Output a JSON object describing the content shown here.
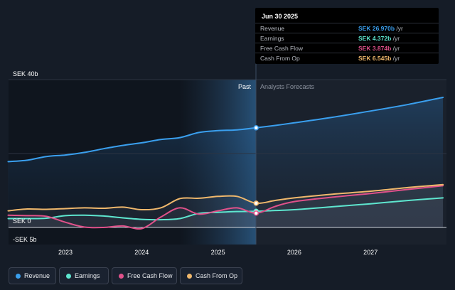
{
  "tooltip": {
    "date": "Jun 30 2025",
    "rows": [
      {
        "label": "Revenue",
        "value": "SEK 26.970b",
        "unit": " /yr",
        "color": "#3a9fee"
      },
      {
        "label": "Earnings",
        "value": "SEK 4.372b",
        "unit": " /yr",
        "color": "#5ee6cf"
      },
      {
        "label": "Free Cash Flow",
        "value": "SEK 3.874b",
        "unit": " /yr",
        "color": "#e0518a"
      },
      {
        "label": "Cash From Op",
        "value": "SEK 6.545b",
        "unit": " /yr",
        "color": "#f0b86c"
      }
    ]
  },
  "labels": {
    "past": "Past",
    "forecast": "Analysts Forecasts",
    "y_top": "SEK 40b",
    "y_zero": "SEK 0",
    "y_bottom": "-SEK 5b"
  },
  "legend": [
    {
      "label": "Revenue",
      "color": "#3a9fee"
    },
    {
      "label": "Earnings",
      "color": "#5ee6cf"
    },
    {
      "label": "Free Cash Flow",
      "color": "#e0518a"
    },
    {
      "label": "Cash From Op",
      "color": "#f0b86c"
    }
  ],
  "chart_data": {
    "type": "line",
    "ylim": [
      -5,
      40
    ],
    "y_ticks": [
      "SEK 40b",
      "SEK 0",
      "-SEK 5b"
    ],
    "x_ticks": [
      "2023",
      "2024",
      "2025",
      "2026",
      "2027"
    ],
    "past_end": 2025.5,
    "series": [
      {
        "name": "Revenue",
        "color": "#3a9fee",
        "x": [
          2022.25,
          2022.5,
          2022.75,
          2023.0,
          2023.25,
          2023.5,
          2023.75,
          2024.0,
          2024.25,
          2024.5,
          2024.75,
          2025.0,
          2025.25,
          2025.5,
          2025.75,
          2026.0,
          2026.5,
          2027.0,
          2027.5,
          2027.95
        ],
        "y": [
          17.8,
          18.2,
          19.2,
          19.6,
          20.3,
          21.3,
          22.2,
          22.9,
          23.8,
          24.3,
          25.7,
          26.2,
          26.4,
          26.97,
          27.6,
          28.3,
          29.8,
          31.5,
          33.3,
          35.2
        ]
      },
      {
        "name": "Earnings",
        "color": "#5ee6cf",
        "x": [
          2022.25,
          2022.5,
          2022.75,
          2023.0,
          2023.25,
          2023.5,
          2023.75,
          2024.0,
          2024.25,
          2024.5,
          2024.75,
          2025.0,
          2025.25,
          2025.5,
          2025.75,
          2026.0,
          2026.5,
          2027.0,
          2027.5,
          2027.95
        ],
        "y": [
          2.4,
          2.4,
          2.5,
          3.2,
          3.3,
          3.1,
          2.6,
          2.2,
          2.1,
          2.4,
          3.8,
          4.1,
          4.3,
          4.37,
          4.6,
          4.8,
          5.6,
          6.4,
          7.3,
          8.0
        ]
      },
      {
        "name": "Free Cash Flow",
        "color": "#e0518a",
        "x": [
          2022.25,
          2022.5,
          2022.75,
          2023.0,
          2023.25,
          2023.5,
          2023.75,
          2024.0,
          2024.25,
          2024.5,
          2024.75,
          2025.0,
          2025.25,
          2025.5,
          2025.75,
          2026.0,
          2026.5,
          2027.0,
          2027.5,
          2027.95
        ],
        "y": [
          3.3,
          3.2,
          3.0,
          1.4,
          0.1,
          0.0,
          0.4,
          -0.3,
          2.8,
          5.3,
          3.6,
          4.5,
          5.3,
          3.87,
          5.7,
          7.0,
          8.2,
          9.2,
          10.3,
          11.3
        ]
      },
      {
        "name": "Cash From Op",
        "color": "#f0b86c",
        "x": [
          2022.25,
          2022.5,
          2022.75,
          2023.0,
          2023.25,
          2023.5,
          2023.75,
          2024.0,
          2024.25,
          2024.5,
          2024.75,
          2025.0,
          2025.25,
          2025.5,
          2025.75,
          2026.0,
          2026.5,
          2027.0,
          2027.5,
          2027.95
        ],
        "y": [
          4.5,
          5.0,
          4.9,
          5.1,
          5.3,
          5.2,
          5.5,
          4.8,
          5.3,
          7.8,
          7.9,
          8.4,
          8.4,
          6.55,
          7.3,
          8.0,
          9.0,
          9.8,
          10.8,
          11.6
        ]
      }
    ]
  }
}
